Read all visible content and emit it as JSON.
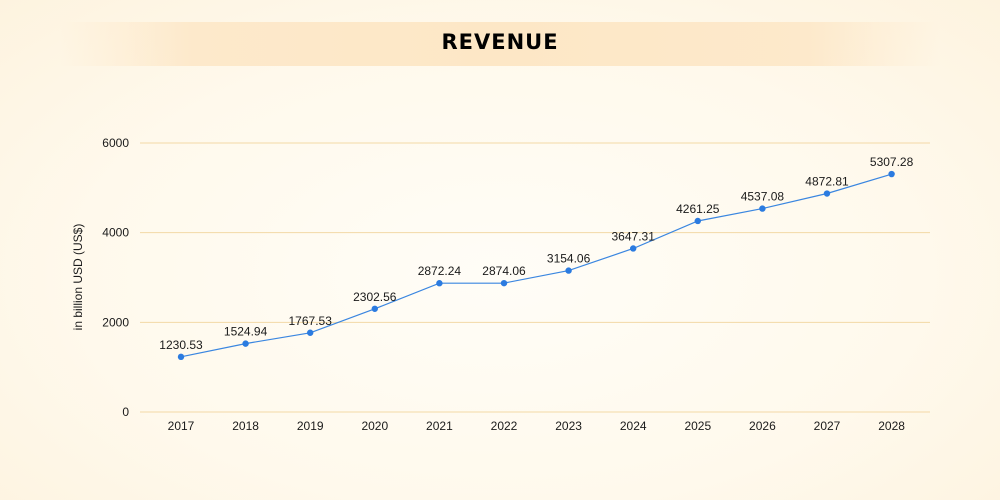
{
  "chart_data": {
    "type": "line",
    "title": "REVENUE",
    "ylabel": "in billion USD (US$)",
    "xlabel": "",
    "x": [
      "2017",
      "2018",
      "2019",
      "2020",
      "2021",
      "2022",
      "2023",
      "2024",
      "2025",
      "2026",
      "2027",
      "2028"
    ],
    "series": [
      {
        "values": [
          1230.53,
          1524.94,
          1767.53,
          2302.56,
          2872.24,
          2874.06,
          3154.06,
          3647.31,
          4261.25,
          4537.08,
          4872.81,
          5307.28
        ],
        "labels": [
          "1230.53",
          "1524.94",
          "1767.53",
          "2302.56",
          "2872.24",
          "2874.06",
          "3154.06",
          "3647.31",
          "4261.25",
          "4537.08",
          "4872.81",
          "5307.28"
        ]
      }
    ],
    "ylim": [
      0,
      6000
    ],
    "yticks": [
      "0",
      "2000",
      "4000",
      "6000"
    ],
    "grid": true,
    "legend": "none",
    "colors": {
      "line": "#3a86e0",
      "marker": "#2b7be0",
      "grid": "#f3d9a6"
    }
  }
}
